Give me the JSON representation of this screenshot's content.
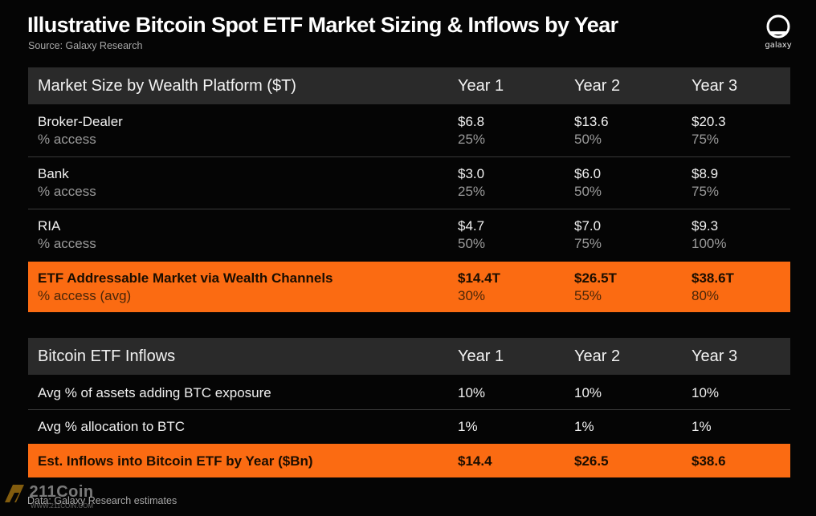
{
  "header": {
    "title": "Illustrative Bitcoin Spot ETF Market Sizing & Inflows by Year",
    "source": "Source: Galaxy Research",
    "logo_text": "galaxy"
  },
  "market_table": {
    "columns": [
      "Market Size by Wealth Platform ($T)",
      "Year 1",
      "Year 2",
      "Year 3"
    ],
    "rows": [
      {
        "label": "Broker-Dealer",
        "sublabel": "% access",
        "values": [
          "$6.8",
          "$13.6",
          "$20.3"
        ],
        "subvalues": [
          "25%",
          "50%",
          "75%"
        ]
      },
      {
        "label": "Bank",
        "sublabel": "% access",
        "values": [
          "$3.0",
          "$6.0",
          "$8.9"
        ],
        "subvalues": [
          "25%",
          "50%",
          "75%"
        ]
      },
      {
        "label": "RIA",
        "sublabel": "% access",
        "values": [
          "$4.7",
          "$7.0",
          "$9.3"
        ],
        "subvalues": [
          "50%",
          "75%",
          "100%"
        ]
      }
    ],
    "total": {
      "label": "ETF Addressable Market via Wealth Channels",
      "sublabel": "% access (avg)",
      "values": [
        "$14.4T",
        "$26.5T",
        "$38.6T"
      ],
      "subvalues": [
        "30%",
        "55%",
        "80%"
      ]
    }
  },
  "inflow_table": {
    "columns": [
      "Bitcoin ETF Inflows",
      "Year 1",
      "Year 2",
      "Year 3"
    ],
    "rows": [
      {
        "label": "Avg % of assets adding BTC exposure",
        "values": [
          "10%",
          "10%",
          "10%"
        ]
      },
      {
        "label": "Avg % allocation to BTC",
        "values": [
          "1%",
          "1%",
          "1%"
        ]
      }
    ],
    "total": {
      "label": "Est. Inflows into Bitcoin ETF by Year ($Bn)",
      "values": [
        "$14.4",
        "$26.5",
        "$38.6"
      ]
    }
  },
  "footer": "Data: Galaxy Research estimates",
  "watermark": {
    "main": "211Coin",
    "sub": "WWW.211COIN.COM"
  },
  "colors": {
    "accent": "#fb6b12",
    "background": "#050505",
    "header_row": "#2a2a2a"
  }
}
